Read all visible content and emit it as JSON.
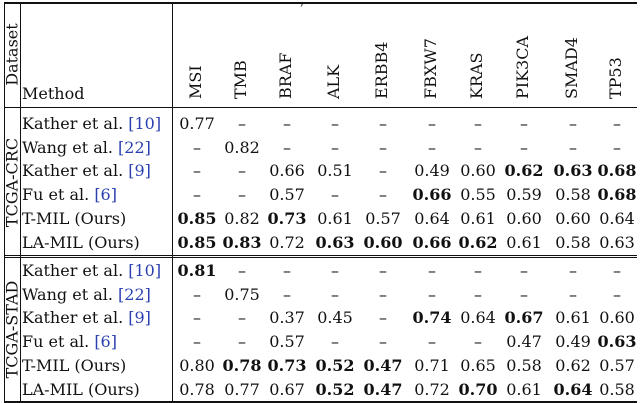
{
  "top_fragment": ",",
  "header": {
    "dataset_label": "Dataset",
    "method_label": "Method",
    "columns": [
      "MSI",
      "TMB",
      "BRAF",
      "ALK",
      "ERBB4",
      "FBXW7",
      "KRAS",
      "PIK3CA",
      "SMAD4",
      "TP53"
    ]
  },
  "groups": [
    {
      "dataset": "TCGA-CRC",
      "rows": [
        {
          "method": "Kather et al. ",
          "cite": "[10]",
          "values": [
            "0.77",
            "–",
            "–",
            "–",
            "–",
            "–",
            "–",
            "–",
            "–",
            "–"
          ],
          "bold": []
        },
        {
          "method": "Wang et al. ",
          "cite": "[22]",
          "values": [
            "–",
            "0.82",
            "–",
            "–",
            "–",
            "–",
            "–",
            "–",
            "–",
            "–"
          ],
          "bold": []
        },
        {
          "method": "Kather et al. ",
          "cite": "[9]",
          "values": [
            "–",
            "–",
            "0.66",
            "0.51",
            "–",
            "0.49",
            "0.60",
            "0.62",
            "0.63",
            "0.68"
          ],
          "bold": [
            7,
            8,
            9
          ]
        },
        {
          "method": "Fu et al. ",
          "cite": "[6]",
          "values": [
            "–",
            "–",
            "0.57",
            "–",
            "–",
            "0.66",
            "0.55",
            "0.59",
            "0.58",
            "0.68"
          ],
          "bold": [
            5,
            9
          ]
        },
        {
          "method": "T-MIL (Ours)",
          "cite": "",
          "values": [
            "0.85",
            "0.82",
            "0.73",
            "0.61",
            "0.57",
            "0.64",
            "0.61",
            "0.60",
            "0.60",
            "0.64"
          ],
          "bold": [
            0,
            2
          ]
        },
        {
          "method": "LA-MIL (Ours)",
          "cite": "",
          "values": [
            "0.85",
            "0.83",
            "0.72",
            "0.63",
            "0.60",
            "0.66",
            "0.62",
            "0.61",
            "0.58",
            "0.63"
          ],
          "bold": [
            0,
            1,
            3,
            4,
            5,
            6
          ]
        }
      ]
    },
    {
      "dataset": "TCGA-STAD",
      "rows": [
        {
          "method": "Kather et al. ",
          "cite": "[10]",
          "values": [
            "0.81",
            "–",
            "–",
            "–",
            "–",
            "–",
            "–",
            "–",
            "–",
            "–"
          ],
          "bold": [
            0
          ]
        },
        {
          "method": "Wang et al. ",
          "cite": "[22]",
          "values": [
            "–",
            "0.75",
            "–",
            "–",
            "–",
            "–",
            "–",
            "–",
            "–",
            "–"
          ],
          "bold": []
        },
        {
          "method": "Kather et al. ",
          "cite": "[9]",
          "values": [
            "–",
            "–",
            "0.37",
            "0.45",
            "–",
            "0.74",
            "0.64",
            "0.67",
            "0.61",
            "0.60"
          ],
          "bold": [
            5,
            7
          ]
        },
        {
          "method": "Fu et al. ",
          "cite": "[6]",
          "values": [
            "–",
            "–",
            "0.57",
            "–",
            "–",
            "–",
            "–",
            "0.47",
            "0.49",
            "0.63"
          ],
          "bold": [
            9
          ]
        },
        {
          "method": "T-MIL (Ours)",
          "cite": "",
          "values": [
            "0.80",
            "0.78",
            "0.73",
            "0.52",
            "0.47",
            "0.71",
            "0.65",
            "0.58",
            "0.62",
            "0.57"
          ],
          "bold": [
            1,
            2,
            3,
            4
          ]
        },
        {
          "method": "LA-MIL (Ours)",
          "cite": "",
          "values": [
            "0.78",
            "0.77",
            "0.67",
            "0.52",
            "0.47",
            "0.72",
            "0.70",
            "0.61",
            "0.64",
            "0.58"
          ],
          "bold": [
            3,
            4,
            6,
            8
          ]
        }
      ]
    }
  ]
}
